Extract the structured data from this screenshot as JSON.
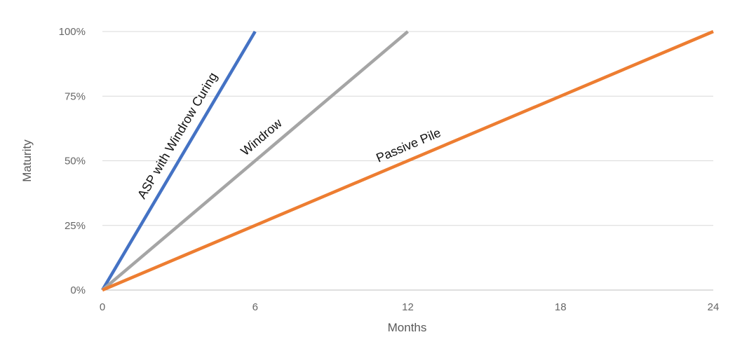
{
  "chart_data": {
    "type": "line",
    "title": "",
    "xlabel": "Months",
    "ylabel": "Maturity",
    "xlim": [
      0,
      24
    ],
    "ylim": [
      0,
      100
    ],
    "x_ticks": [
      0,
      6,
      12,
      18,
      24
    ],
    "x_tick_labels": [
      "0",
      "6",
      "12",
      "18",
      "24"
    ],
    "y_ticks": [
      0,
      25,
      50,
      75,
      100
    ],
    "y_tick_labels": [
      "0%",
      "25%",
      "50%",
      "75%",
      "100%"
    ],
    "grid": "horizontal",
    "legend": "none",
    "series": [
      {
        "name": "ASP with Windrow Curing",
        "color": "#4472c4",
        "x": [
          0,
          6
        ],
        "y": [
          0,
          100
        ]
      },
      {
        "name": "Windrow",
        "color": "#a5a5a5",
        "x": [
          0,
          12
        ],
        "y": [
          0,
          100
        ]
      },
      {
        "name": "Passive Pile",
        "color": "#ed7d31",
        "x": [
          0,
          24
        ],
        "y": [
          0,
          100
        ]
      }
    ]
  }
}
